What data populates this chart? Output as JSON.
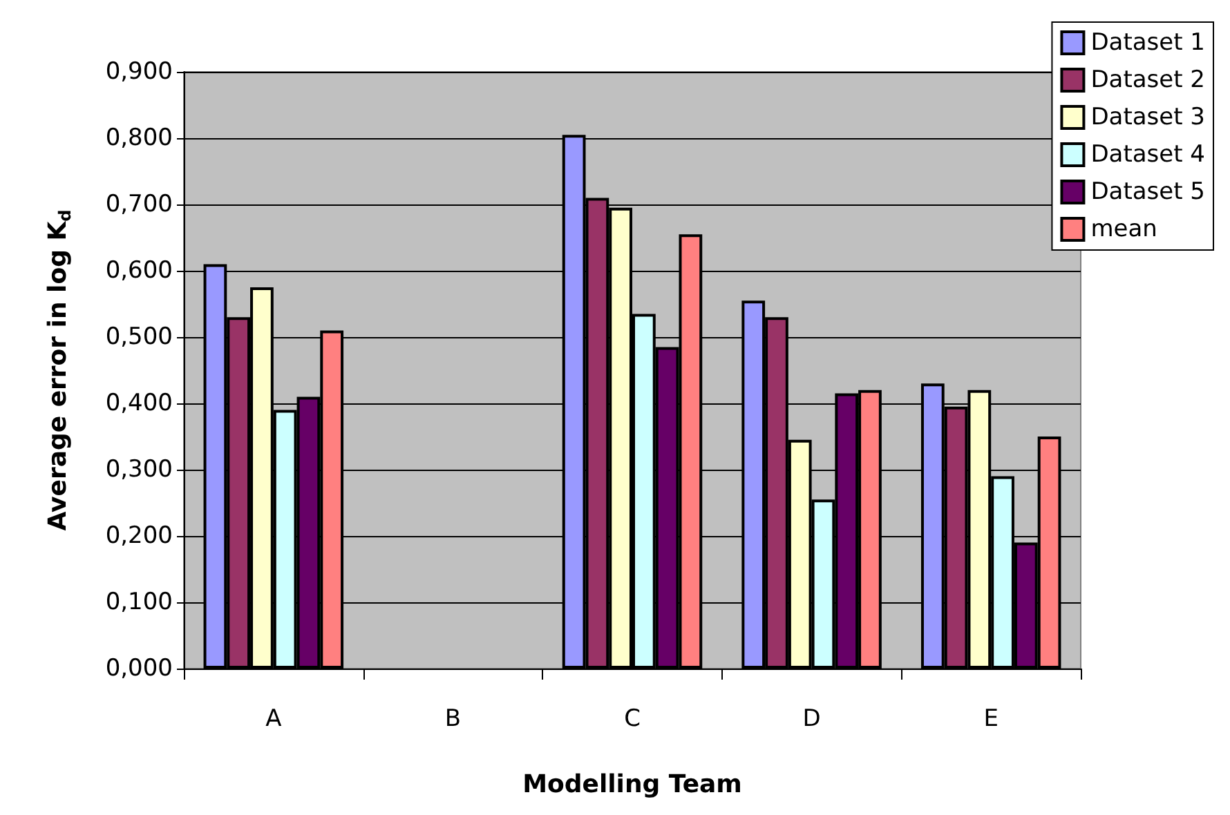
{
  "chart_data": {
    "type": "bar",
    "xlabel": "Modelling Team",
    "ylabel": "Average error in log K$_{d}$",
    "categories": [
      "A",
      "B",
      "C",
      "D",
      "E"
    ],
    "series": [
      {
        "name": "Dataset 1",
        "color": "#9999ff",
        "values": [
          0.61,
          null,
          0.805,
          0.555,
          0.43
        ]
      },
      {
        "name": "Dataset 2",
        "color": "#993366",
        "values": [
          0.53,
          null,
          0.71,
          0.53,
          0.395
        ]
      },
      {
        "name": "Dataset 3",
        "color": "#ffffcc",
        "values": [
          0.575,
          null,
          0.695,
          0.345,
          0.42
        ]
      },
      {
        "name": "Dataset 4",
        "color": "#ccffff",
        "values": [
          0.39,
          null,
          0.535,
          0.255,
          0.29
        ]
      },
      {
        "name": "Dataset 5",
        "color": "#660066",
        "values": [
          0.41,
          null,
          0.485,
          0.415,
          0.19
        ]
      },
      {
        "name": "mean",
        "color": "#ff8080",
        "values": [
          0.51,
          null,
          0.655,
          0.42,
          0.35
        ]
      }
    ],
    "ylim": [
      0,
      0.9
    ],
    "yticks": [
      {
        "value": 0,
        "label": "0,000"
      },
      {
        "value": 0.1,
        "label": "0,100"
      },
      {
        "value": 0.2,
        "label": "0,200"
      },
      {
        "value": 0.3,
        "label": "0,300"
      },
      {
        "value": 0.4,
        "label": "0,400"
      },
      {
        "value": 0.5,
        "label": "0,500"
      },
      {
        "value": 0.6,
        "label": "0,600"
      },
      {
        "value": 0.7,
        "label": "0,700"
      },
      {
        "value": 0.8,
        "label": "0,800"
      },
      {
        "value": 0.9,
        "label": "0,900"
      }
    ],
    "grid": "y",
    "legend": "top right"
  }
}
